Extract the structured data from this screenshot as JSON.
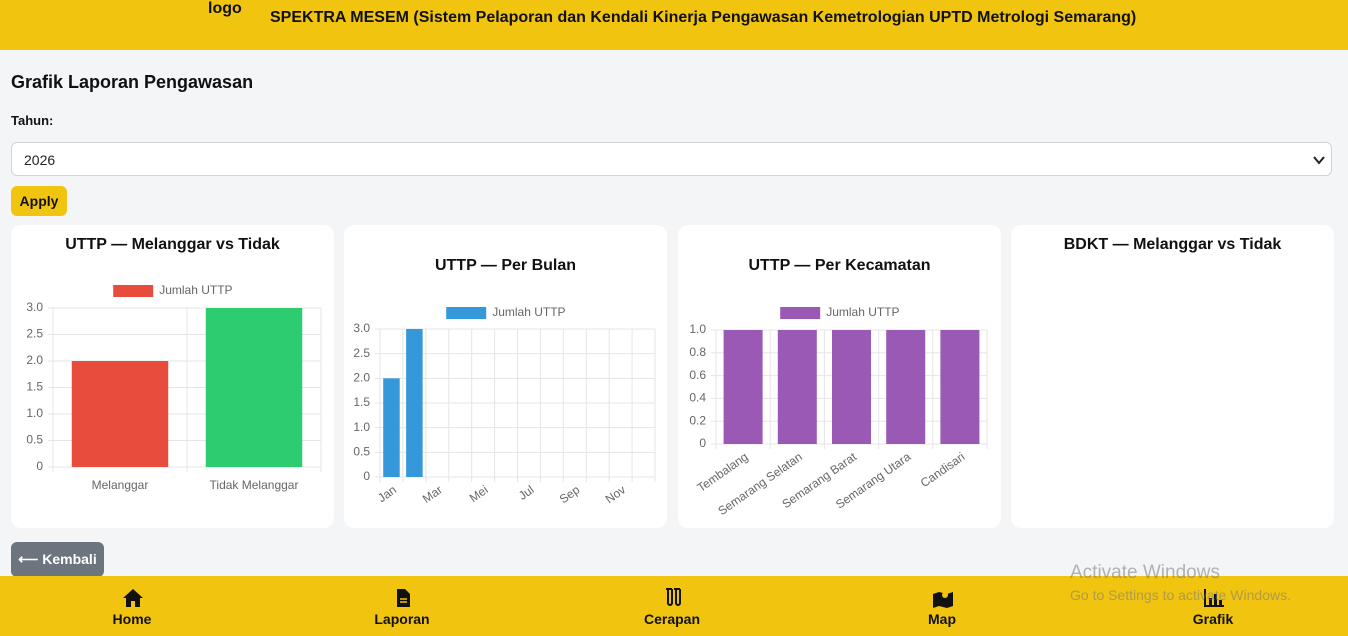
{
  "header": {
    "logo_alt": "logo",
    "title": "SPEKTRA MESEM (Sistem Pelaporan dan Kendali Kinerja Pengawasan Kemetrologian UPTD Metrologi Semarang)"
  },
  "page_title": "Grafik Laporan Pengawasan",
  "form": {
    "label": "Tahun:",
    "selected": "2026",
    "button": "Apply"
  },
  "chart_data": [
    {
      "type": "bar",
      "title": "UTTP — Melanggar vs Tidak",
      "categories": [
        "Melanggar",
        "Tidak Melanggar"
      ],
      "series": [
        {
          "name": "Jumlah UTTP",
          "colors": [
            "#e74c3c",
            "#2ecc71"
          ],
          "values": [
            2,
            3
          ]
        }
      ],
      "ylim": [
        0,
        3
      ],
      "yticks": [
        0,
        0.5,
        {
          "value": 1,
          "label": "1.0"
        },
        1.5,
        {
          "value": 2,
          "label": "2.0"
        },
        2.5,
        {
          "value": 3,
          "label": "3.0"
        }
      ],
      "grid": true
    },
    {
      "type": "bar",
      "title": "UTTP — Per Bulan",
      "categories": [
        "Jan",
        null,
        "Mar",
        null,
        "Mei",
        null,
        "Jul",
        null,
        "Sep",
        null,
        "Nov",
        null
      ],
      "series": [
        {
          "name": "Jumlah UTTP",
          "colors": [
            "#3498db"
          ],
          "values": [
            2,
            3,
            0,
            0,
            0,
            0,
            0,
            0,
            0,
            0,
            0,
            0
          ]
        }
      ],
      "ylim": [
        0,
        3
      ],
      "yticks": [
        0,
        0.5,
        {
          "value": 1,
          "label": "1.0"
        },
        1.5,
        {
          "value": 2,
          "label": "2.0"
        },
        2.5,
        {
          "value": 3,
          "label": "3.0"
        }
      ],
      "grid": true
    },
    {
      "type": "bar",
      "title": "UTTP — Per Kecamatan",
      "categories": [
        "Tembalang",
        "Semarang Selatan",
        "Semarang Barat",
        "Semarang Utara",
        "Candisari"
      ],
      "series": [
        {
          "name": "Jumlah UTTP",
          "colors": [
            "#9b59b6"
          ],
          "values": [
            1,
            1,
            1,
            1,
            1
          ]
        }
      ],
      "ylim": [
        0,
        1
      ],
      "yticks": [
        0,
        0.2,
        0.4,
        0.6,
        0.8,
        {
          "value": 1,
          "label": "1.0"
        }
      ],
      "grid": true
    },
    {
      "title": "BDKT — Melanggar vs Tidak"
    }
  ],
  "back_button": "⟵ Kembali",
  "nav": [
    "Home",
    "Laporan",
    "Cerapan",
    "Map",
    "Grafik"
  ],
  "watermark": [
    "Activate Windows",
    "Go to Settings to activate Windows."
  ]
}
